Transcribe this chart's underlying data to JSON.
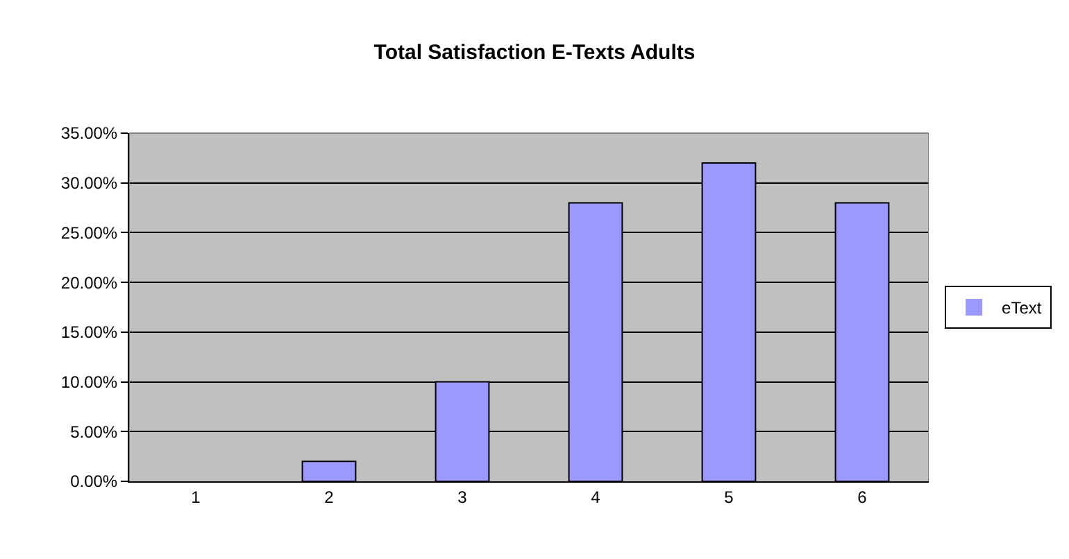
{
  "chart_data": {
    "type": "bar",
    "title": "Total Satisfaction E-Texts Adults",
    "categories": [
      "1",
      "2",
      "3",
      "4",
      "5",
      "6"
    ],
    "series": [
      {
        "name": "eText",
        "color": "#9999ff",
        "values": [
          0,
          2,
          10,
          28,
          32,
          28
        ]
      }
    ],
    "ylim": [
      0,
      35
    ],
    "yticks": [
      {
        "value": 0,
        "label": "0.00%"
      },
      {
        "value": 5,
        "label": "5.00%"
      },
      {
        "value": 10,
        "label": "10.00%"
      },
      {
        "value": 15,
        "label": "15.00%"
      },
      {
        "value": 20,
        "label": "20.00%"
      },
      {
        "value": 25,
        "label": "25.00%"
      },
      {
        "value": 30,
        "label": "30.00%"
      },
      {
        "value": 35,
        "label": "35.00%"
      }
    ],
    "grid": "y",
    "legend": "right"
  }
}
